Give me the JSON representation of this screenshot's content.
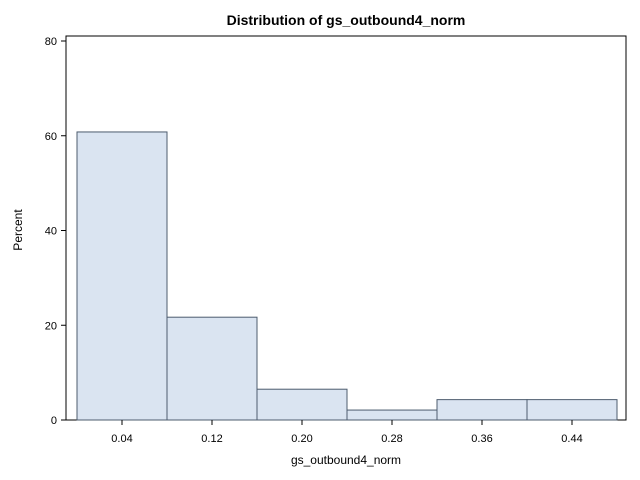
{
  "chart_data": {
    "type": "bar",
    "title": "Distribution of gs_outbound4_norm",
    "xlabel": "gs_outbound4_norm",
    "ylabel": "Percent",
    "categories": [
      "0.04",
      "0.12",
      "0.20",
      "0.28",
      "0.36",
      "0.44"
    ],
    "values": [
      60.8,
      21.7,
      6.5,
      2.1,
      4.3,
      4.3
    ],
    "ylim": [
      0,
      80
    ],
    "yticks": [
      "0",
      "20",
      "40",
      "60",
      "80"
    ],
    "grid": false,
    "legend": "none",
    "bar_fill": "#dae4f1",
    "bar_stroke": "#4d5c6e"
  }
}
